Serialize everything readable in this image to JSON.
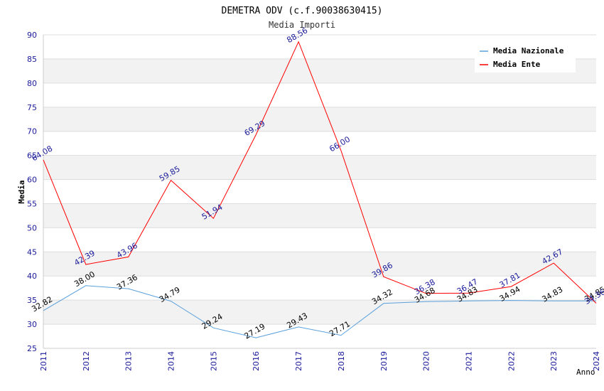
{
  "chart_data": {
    "type": "line",
    "title": "DEMETRA ODV (c.f.90038630415)",
    "subtitle": "Media Importi",
    "xlabel": "Anno",
    "ylabel": "Media",
    "ylim": [
      25,
      90
    ],
    "yticks": [
      25,
      30,
      35,
      40,
      45,
      50,
      55,
      60,
      65,
      70,
      75,
      80,
      85,
      90
    ],
    "grid": true,
    "legend_position": "top-right",
    "categories": [
      "2011",
      "2012",
      "2013",
      "2014",
      "2015",
      "2016",
      "2017",
      "2018",
      "2019",
      "2020",
      "2021",
      "2022",
      "2023",
      "2024"
    ],
    "series": [
      {
        "name": "Media Nazionale",
        "color": "#5aa0dc",
        "label_color": "#000000",
        "values": [
          32.82,
          38.0,
          37.36,
          34.79,
          29.24,
          27.19,
          29.43,
          27.71,
          34.32,
          34.68,
          34.83,
          34.94,
          34.83,
          34.85
        ],
        "labels": [
          "32.82",
          "38.00",
          "37.36",
          "34.79",
          "29.24",
          "27.19",
          "29.43",
          "27.71",
          "34.32",
          "34.68",
          "34.83",
          "34.94",
          "34.83",
          "34.85"
        ]
      },
      {
        "name": "Media Ente",
        "color": "#ff0000",
        "label_color": "#1a1a9a",
        "values": [
          64.08,
          42.39,
          43.96,
          59.85,
          51.94,
          69.29,
          88.56,
          66.0,
          39.86,
          36.38,
          36.47,
          37.81,
          42.67,
          34.36
        ],
        "labels": [
          "64.08",
          "42.39",
          "43.96",
          "59.85",
          "51.94",
          "69.29",
          "88.56",
          "66.00",
          "39.86",
          "36.38",
          "36.47",
          "37.81",
          "42.67",
          "34.36"
        ]
      }
    ],
    "axis_color": "#1a1a9a"
  }
}
